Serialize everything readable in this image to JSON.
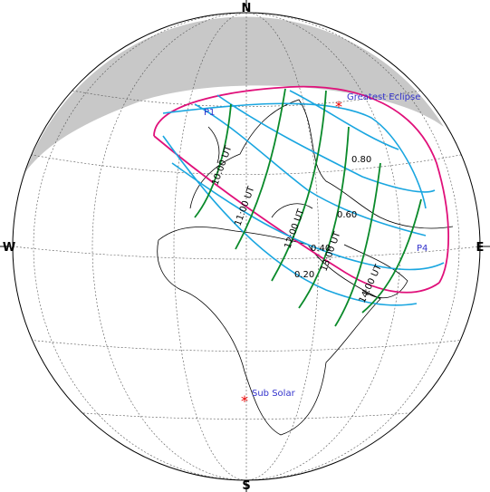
{
  "compass": {
    "north": "N",
    "south": "S",
    "east": "E",
    "west": "W"
  },
  "points": {
    "greatest_eclipse": "Greatest Eclipse",
    "sub_solar": "Sub Solar",
    "p1": "P1",
    "p4": "P4"
  },
  "magnitudes": [
    "0.20",
    "0.40",
    "0.60",
    "0.80"
  ],
  "times": [
    "10:00 UT",
    "11:00 UT",
    "12:00 UT",
    "13:00 UT",
    "14:00 UT"
  ]
}
